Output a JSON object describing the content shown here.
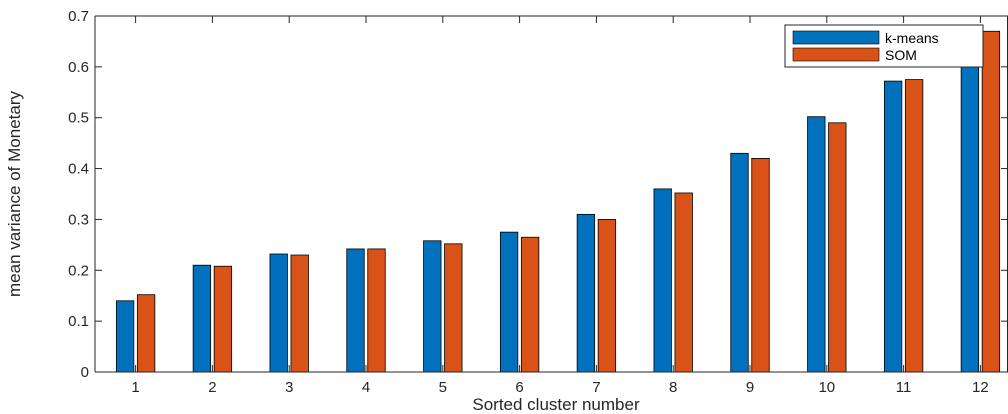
{
  "chart_data": {
    "type": "bar",
    "title": "",
    "xlabel": "Sorted cluster number",
    "ylabel": "mean variance of Monetary",
    "categories": [
      "1",
      "2",
      "3",
      "4",
      "5",
      "6",
      "7",
      "8",
      "9",
      "10",
      "11",
      "12"
    ],
    "ylim": [
      0,
      0.7
    ],
    "yticks": [
      "0",
      "0.1",
      "0.2",
      "0.3",
      "0.4",
      "0.5",
      "0.6",
      "0.7"
    ],
    "grid": false,
    "legend_position": "top-right",
    "series": [
      {
        "name": "k-means",
        "color": "#0072BD",
        "values": [
          0.14,
          0.21,
          0.232,
          0.242,
          0.258,
          0.275,
          0.31,
          0.36,
          0.43,
          0.502,
          0.572,
          0.65
        ]
      },
      {
        "name": "SOM",
        "color": "#D95319",
        "values": [
          0.152,
          0.208,
          0.23,
          0.242,
          0.252,
          0.265,
          0.3,
          0.352,
          0.42,
          0.49,
          0.575,
          0.67
        ]
      }
    ]
  }
}
